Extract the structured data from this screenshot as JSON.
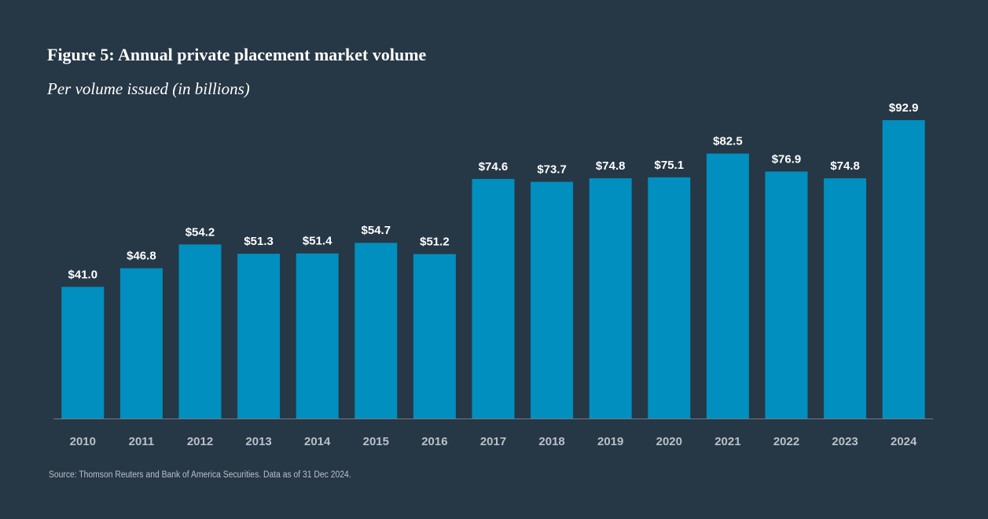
{
  "chart_data": {
    "type": "bar",
    "title": "Figure 5: Annual private placement market volume",
    "subtitle": "Per volume issued (in billions)",
    "categories": [
      "2010",
      "2011",
      "2012",
      "2013",
      "2014",
      "2015",
      "2016",
      "2017",
      "2018",
      "2019",
      "2020",
      "2021",
      "2022",
      "2023",
      "2024"
    ],
    "values": [
      41.0,
      46.8,
      54.2,
      51.3,
      51.4,
      54.7,
      51.2,
      74.6,
      73.7,
      74.8,
      75.1,
      82.5,
      76.9,
      74.8,
      92.9
    ],
    "value_labels": [
      "$41.0",
      "$46.8",
      "$54.2",
      "$51.3",
      "$51.4",
      "$54.7",
      "$51.2",
      "$74.6",
      "$73.7",
      "$74.8",
      "$75.1",
      "$82.5",
      "$76.9",
      "$74.8",
      "$92.9"
    ],
    "color": "#008fbf",
    "ylim": [
      0,
      100
    ],
    "source": "Source: Thomson Reuters and Bank of America Securities. Data as of 31 Dec 2024."
  }
}
